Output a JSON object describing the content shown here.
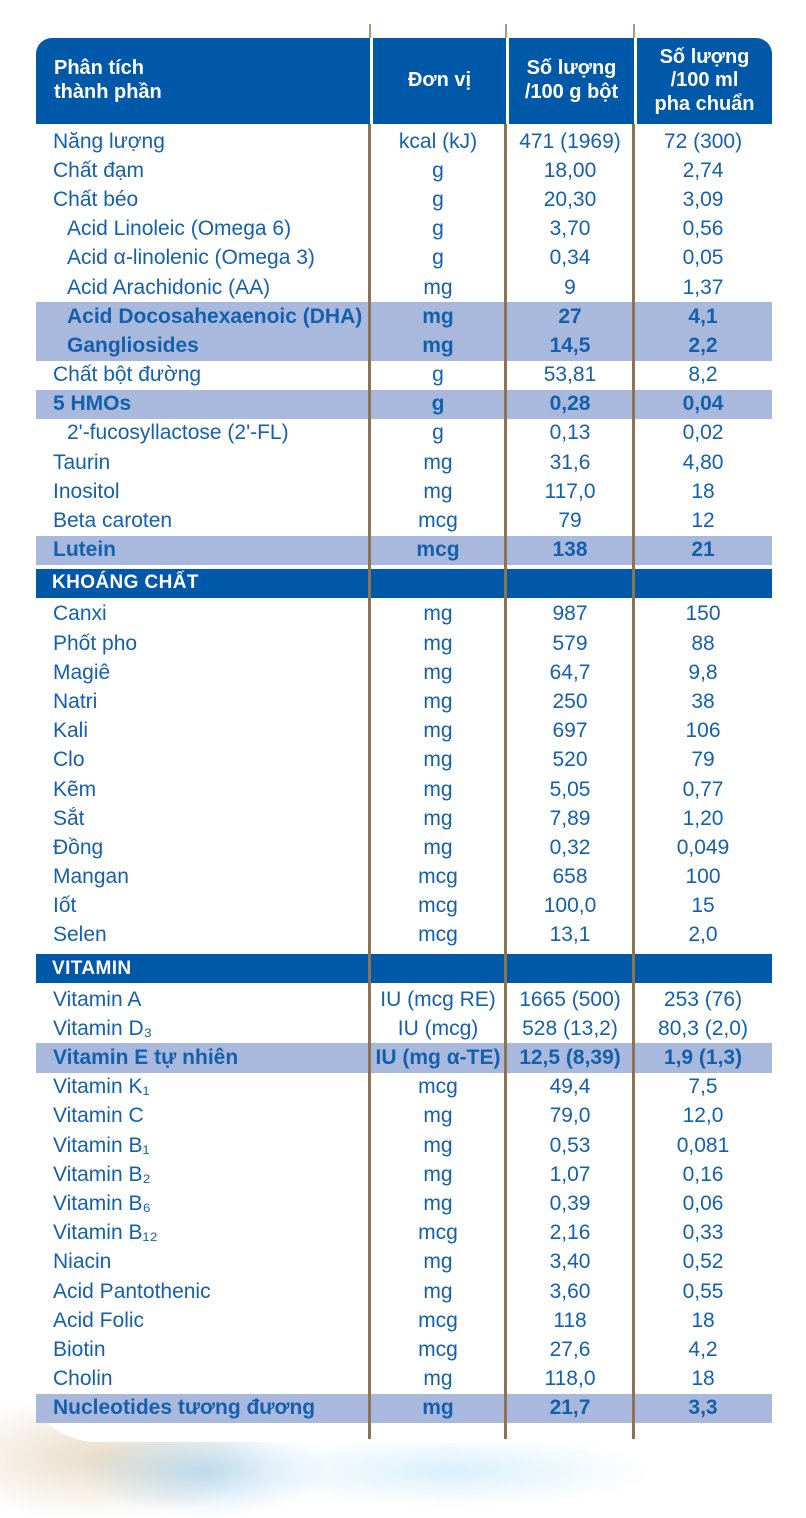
{
  "colors": {
    "header_blue": "#0058a9",
    "highlight_blue": "#a9b8dd",
    "text_blue": "#1560ac",
    "rule_brown": "#8b7355"
  },
  "table": {
    "columns": [
      "Phân tích\nthành phần",
      "Đơn vị",
      "Số lượng\n/100 g bột",
      "Số lượng\n/100 ml\npha chuẩn"
    ],
    "rows": [
      {
        "label": "Năng lượng",
        "unit": "kcal (kJ)",
        "per100g": "471 (1969)",
        "per100ml": "72 (300)"
      },
      {
        "label": "Chất đạm",
        "unit": "g",
        "per100g": "18,00",
        "per100ml": "2,74"
      },
      {
        "label": "Chất béo",
        "unit": "g",
        "per100g": "20,30",
        "per100ml": "3,09"
      },
      {
        "label": "Acid Linoleic (Omega 6)",
        "unit": "g",
        "per100g": "3,70",
        "per100ml": "0,56",
        "indent": true
      },
      {
        "label": "Acid α-linolenic (Omega 3)",
        "unit": "g",
        "per100g": "0,34",
        "per100ml": "0,05",
        "indent": true
      },
      {
        "label": "Acid Arachidonic (AA)",
        "unit": "mg",
        "per100g": "9",
        "per100ml": "1,37",
        "indent": true
      },
      {
        "label": "Acid Docosahexaenoic (DHA)",
        "unit": "mg",
        "per100g": "27",
        "per100ml": "4,1",
        "indent": true,
        "highlight": true
      },
      {
        "label": "Gangliosides",
        "unit": "mg",
        "per100g": "14,5",
        "per100ml": "2,2",
        "indent": true,
        "highlight": true
      },
      {
        "label": "Chất bột đường",
        "unit": "g",
        "per100g": "53,81",
        "per100ml": "8,2"
      },
      {
        "label": "5 HMOs",
        "unit": "g",
        "per100g": "0,28",
        "per100ml": "0,04",
        "highlight": true
      },
      {
        "label": "2'-fucosyllactose (2'-FL)",
        "unit": "g",
        "per100g": "0,13",
        "per100ml": "0,02",
        "indent": true
      },
      {
        "label": "Taurin",
        "unit": "mg",
        "per100g": "31,6",
        "per100ml": "4,80"
      },
      {
        "label": "Inositol",
        "unit": "mg",
        "per100g": "117,0",
        "per100ml": "18"
      },
      {
        "label": "Beta caroten",
        "unit": "mcg",
        "per100g": "79",
        "per100ml": "12"
      },
      {
        "label": "Lutein",
        "unit": "mcg",
        "per100g": "138",
        "per100ml": "21",
        "highlight": true
      },
      {
        "section": "KHOÁNG CHẤT"
      },
      {
        "label": "Canxi",
        "unit": "mg",
        "per100g": "987",
        "per100ml": "150"
      },
      {
        "label": "Phốt pho",
        "unit": "mg",
        "per100g": "579",
        "per100ml": "88"
      },
      {
        "label": "Magiê",
        "unit": "mg",
        "per100g": "64,7",
        "per100ml": "9,8"
      },
      {
        "label": "Natri",
        "unit": "mg",
        "per100g": "250",
        "per100ml": "38"
      },
      {
        "label": "Kali",
        "unit": "mg",
        "per100g": "697",
        "per100ml": "106"
      },
      {
        "label": "Clo",
        "unit": "mg",
        "per100g": "520",
        "per100ml": "79"
      },
      {
        "label": "Kẽm",
        "unit": "mg",
        "per100g": "5,05",
        "per100ml": "0,77"
      },
      {
        "label": "Sắt",
        "unit": "mg",
        "per100g": "7,89",
        "per100ml": "1,20"
      },
      {
        "label": "Đồng",
        "unit": "mg",
        "per100g": "0,32",
        "per100ml": "0,049"
      },
      {
        "label": "Mangan",
        "unit": "mcg",
        "per100g": "658",
        "per100ml": "100"
      },
      {
        "label": "Iốt",
        "unit": "mcg",
        "per100g": "100,0",
        "per100ml": "15"
      },
      {
        "label": "Selen",
        "unit": "mcg",
        "per100g": "13,1",
        "per100ml": "2,0"
      },
      {
        "section": "VITAMIN"
      },
      {
        "label": "Vitamin A",
        "unit": "IU (mcg RE)",
        "per100g": "1665 (500)",
        "per100ml": "253 (76)"
      },
      {
        "label": "Vitamin D₃",
        "unit": "IU (mcg)",
        "per100g": "528 (13,2)",
        "per100ml": "80,3 (2,0)"
      },
      {
        "label": "Vitamin E tự nhiên",
        "unit": "IU (mg α-TE)",
        "per100g": "12,5 (8,39)",
        "per100ml": "1,9 (1,3)",
        "highlight": true
      },
      {
        "label": "Vitamin K₁",
        "unit": "mcg",
        "per100g": "49,4",
        "per100ml": "7,5"
      },
      {
        "label": "Vitamin C",
        "unit": "mg",
        "per100g": "79,0",
        "per100ml": "12,0"
      },
      {
        "label": "Vitamin B₁",
        "unit": "mg",
        "per100g": "0,53",
        "per100ml": "0,081"
      },
      {
        "label": "Vitamin B₂",
        "unit": "mg",
        "per100g": "1,07",
        "per100ml": "0,16"
      },
      {
        "label": "Vitamin B₆",
        "unit": "mg",
        "per100g": "0,39",
        "per100ml": "0,06"
      },
      {
        "label": "Vitamin B₁₂",
        "unit": "mcg",
        "per100g": "2,16",
        "per100ml": "0,33"
      },
      {
        "label": "Niacin",
        "unit": "mg",
        "per100g": "3,40",
        "per100ml": "0,52"
      },
      {
        "label": "Acid Pantothenic",
        "unit": "mg",
        "per100g": "3,60",
        "per100ml": "0,55"
      },
      {
        "label": "Acid Folic",
        "unit": "mcg",
        "per100g": "118",
        "per100ml": "18"
      },
      {
        "label": "Biotin",
        "unit": "mcg",
        "per100g": "27,6",
        "per100ml": "4,2"
      },
      {
        "label": "Cholin",
        "unit": "mg",
        "per100g": "118,0",
        "per100ml": "18"
      },
      {
        "label": "Nucleotides tương đương",
        "unit": "mg",
        "per100g": "21,7",
        "per100ml": "3,3",
        "highlight": true
      }
    ]
  }
}
